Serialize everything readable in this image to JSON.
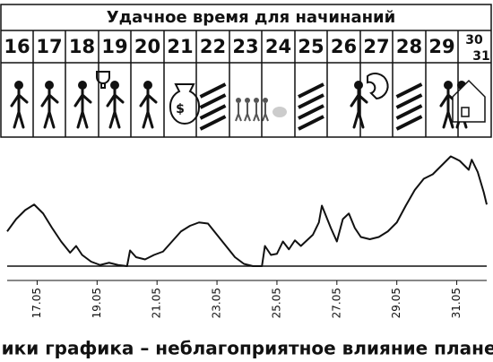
{
  "table": {
    "title": "Удачное время для начинаний",
    "days": [
      "16",
      "17",
      "18",
      "19",
      "20",
      "21",
      "22",
      "23",
      "24",
      "25",
      "26",
      "27",
      "28",
      "29",
      "30",
      "31"
    ]
  },
  "chart_data": {
    "type": "line",
    "caption": "Пики графика – неблагоприятное влияние планет",
    "xlim": [
      16,
      32
    ],
    "ylim": [
      0,
      100
    ],
    "xticks": [
      {
        "value": 17,
        "label": "17.05"
      },
      {
        "value": 19,
        "label": "19.05"
      },
      {
        "value": 21,
        "label": "21.05"
      },
      {
        "value": 23,
        "label": "23.05"
      },
      {
        "value": 25,
        "label": "25.05"
      },
      {
        "value": 27,
        "label": "27.05"
      },
      {
        "value": 29,
        "label": "29.05"
      },
      {
        "value": 31,
        "label": "31.05"
      }
    ],
    "x": [
      16.0,
      16.3,
      16.6,
      16.9,
      17.2,
      17.5,
      17.8,
      18.1,
      18.3,
      18.5,
      18.8,
      19.1,
      19.4,
      19.7,
      20.0,
      20.1,
      20.3,
      20.6,
      20.9,
      21.2,
      21.5,
      21.8,
      22.1,
      22.4,
      22.7,
      23.0,
      23.3,
      23.6,
      23.9,
      24.2,
      24.5,
      24.6,
      24.8,
      25.0,
      25.2,
      25.4,
      25.6,
      25.8,
      26.0,
      26.2,
      26.4,
      26.5,
      26.8,
      27.0,
      27.2,
      27.4,
      27.6,
      27.8,
      28.1,
      28.4,
      28.7,
      29.0,
      29.3,
      29.6,
      29.9,
      30.2,
      30.5,
      30.8,
      31.1,
      31.4,
      31.5,
      31.7,
      31.9,
      32.0
    ],
    "series": [
      {
        "color": "#111111",
        "values": [
          31,
          42,
          50,
          55,
          47,
          34,
          22,
          12,
          18,
          10,
          4,
          1,
          3,
          1,
          0,
          14,
          8,
          6,
          10,
          13,
          22,
          31,
          36,
          39,
          38,
          28,
          18,
          8,
          2,
          0,
          0,
          18,
          10,
          11,
          22,
          15,
          23,
          18,
          23,
          28,
          39,
          54,
          34,
          22,
          42,
          47,
          34,
          26,
          24,
          26,
          31,
          39,
          54,
          68,
          78,
          82,
          90,
          98,
          94,
          86,
          95,
          84,
          66,
          55
        ]
      }
    ]
  }
}
